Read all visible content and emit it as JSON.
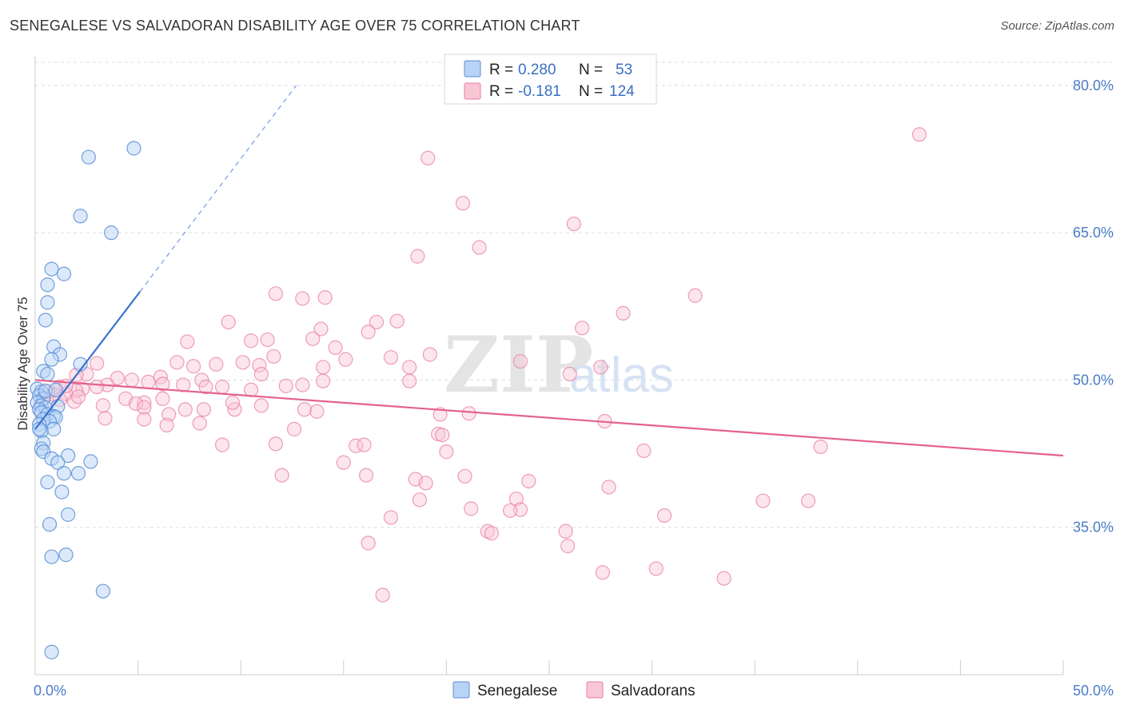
{
  "title": "SENEGALESE VS SALVADORAN DISABILITY AGE OVER 75 CORRELATION CHART",
  "source": "Source: ZipAtlas.com",
  "watermark": {
    "zip": "ZIP",
    "atlas": "atlas"
  },
  "colors": {
    "senegalese_fill": "#b8d3f5",
    "senegalese_stroke": "#5b8fd6",
    "senegalese_line": "#3a72cf",
    "salvadoran_fill": "#f9c6d6",
    "salvadoran_stroke": "#e87fa2",
    "salvadoran_line": "#e4628e",
    "grid": "#dddddd",
    "tick_text": "#4a7cc7"
  },
  "legend": {
    "row1": {
      "r_label": "R = ",
      "r_value": "0.280",
      "n_label": "N = ",
      "n_value": "53"
    },
    "row2": {
      "r_label": "R = ",
      "r_value": "-0.181",
      "n_label": "N = ",
      "n_value": "124"
    }
  },
  "bottom_legend": {
    "senegalese": "Senegalese",
    "salvadorans": "Salvadorans"
  },
  "chart_data": {
    "type": "scatter",
    "title": "SENEGALESE VS SALVADORAN DISABILITY AGE OVER 75 CORRELATION CHART",
    "xlabel": "",
    "ylabel": "Disability Age Over 75",
    "xlim": [
      0,
      50
    ],
    "ylim": [
      20,
      83
    ],
    "x_tick_labels": [
      "0.0%",
      "50.0%"
    ],
    "y_ticks": [
      35,
      50,
      65,
      80
    ],
    "y_tick_labels": [
      "35.0%",
      "50.0%",
      "65.0%",
      "80.0%"
    ],
    "grid": true,
    "legend_position": "top-center",
    "series": [
      {
        "name": "Senegalese",
        "R": 0.28,
        "N": 53,
        "trend": {
          "x": [
            0.0,
            5.1
          ],
          "y": [
            45.0,
            59.0
          ],
          "dashed_to": [
            12.7,
            80.0
          ]
        },
        "points": [
          [
            4.8,
            73.6
          ],
          [
            2.6,
            72.7
          ],
          [
            2.2,
            66.7
          ],
          [
            3.7,
            65.0
          ],
          [
            0.8,
            61.3
          ],
          [
            1.4,
            60.8
          ],
          [
            0.6,
            59.7
          ],
          [
            0.6,
            57.9
          ],
          [
            0.5,
            56.1
          ],
          [
            0.9,
            53.4
          ],
          [
            1.2,
            52.6
          ],
          [
            0.8,
            52.1
          ],
          [
            2.2,
            51.6
          ],
          [
            0.4,
            50.9
          ],
          [
            0.6,
            50.6
          ],
          [
            0.1,
            49.1
          ],
          [
            0.3,
            48.8
          ],
          [
            0.2,
            48.4
          ],
          [
            0.4,
            48.1
          ],
          [
            0.1,
            47.7
          ],
          [
            0.3,
            47.4
          ],
          [
            0.5,
            47.2
          ],
          [
            1.1,
            47.3
          ],
          [
            0.2,
            47.0
          ],
          [
            0.3,
            46.7
          ],
          [
            0.6,
            46.5
          ],
          [
            0.9,
            46.3
          ],
          [
            1.0,
            46.2
          ],
          [
            0.4,
            46.0
          ],
          [
            0.7,
            45.8
          ],
          [
            0.2,
            45.5
          ],
          [
            0.9,
            45.0
          ],
          [
            0.3,
            44.8
          ],
          [
            0.4,
            43.6
          ],
          [
            0.3,
            43.0
          ],
          [
            0.4,
            42.7
          ],
          [
            1.6,
            42.3
          ],
          [
            0.8,
            42.0
          ],
          [
            2.7,
            41.7
          ],
          [
            1.1,
            41.6
          ],
          [
            1.4,
            40.5
          ],
          [
            2.1,
            40.5
          ],
          [
            0.6,
            39.6
          ],
          [
            1.3,
            38.6
          ],
          [
            1.6,
            36.3
          ],
          [
            0.7,
            35.3
          ],
          [
            1.5,
            32.2
          ],
          [
            0.8,
            32.0
          ],
          [
            3.3,
            28.5
          ],
          [
            0.8,
            22.3
          ],
          [
            0.2,
            45.0
          ],
          [
            0.5,
            48.9
          ],
          [
            1.0,
            49.0
          ]
        ]
      },
      {
        "name": "Salvadorans",
        "R": -0.181,
        "N": 124,
        "trend": {
          "x": [
            0.0,
            50.0
          ],
          "y": [
            50.0,
            42.3
          ]
        },
        "points": [
          [
            43.0,
            75.0
          ],
          [
            19.1,
            72.6
          ],
          [
            20.8,
            68.0
          ],
          [
            26.2,
            65.9
          ],
          [
            21.6,
            63.5
          ],
          [
            18.6,
            62.6
          ],
          [
            11.7,
            58.8
          ],
          [
            14.1,
            58.4
          ],
          [
            32.1,
            58.6
          ],
          [
            13.0,
            58.3
          ],
          [
            28.6,
            56.8
          ],
          [
            9.4,
            55.9
          ],
          [
            17.6,
            56.0
          ],
          [
            16.6,
            55.9
          ],
          [
            26.6,
            55.3
          ],
          [
            13.9,
            55.2
          ],
          [
            16.2,
            54.9
          ],
          [
            13.5,
            54.2
          ],
          [
            11.3,
            54.1
          ],
          [
            10.5,
            54.0
          ],
          [
            7.4,
            53.9
          ],
          [
            14.6,
            53.3
          ],
          [
            19.2,
            52.6
          ],
          [
            11.6,
            52.4
          ],
          [
            17.3,
            52.3
          ],
          [
            15.1,
            52.1
          ],
          [
            6.9,
            51.8
          ],
          [
            3.0,
            51.7
          ],
          [
            10.1,
            51.8
          ],
          [
            8.8,
            51.6
          ],
          [
            7.7,
            51.4
          ],
          [
            14.0,
            51.3
          ],
          [
            18.2,
            51.3
          ],
          [
            27.5,
            51.3
          ],
          [
            23.6,
            51.9
          ],
          [
            10.9,
            51.5
          ],
          [
            2.5,
            50.6
          ],
          [
            11.0,
            50.6
          ],
          [
            4.0,
            50.2
          ],
          [
            4.7,
            50.0
          ],
          [
            8.1,
            50.0
          ],
          [
            6.1,
            50.3
          ],
          [
            14.0,
            49.9
          ],
          [
            18.2,
            49.9
          ],
          [
            26.0,
            50.6
          ],
          [
            3.5,
            49.5
          ],
          [
            5.5,
            49.8
          ],
          [
            6.2,
            49.6
          ],
          [
            7.2,
            49.5
          ],
          [
            8.3,
            49.3
          ],
          [
            12.2,
            49.4
          ],
          [
            9.1,
            49.3
          ],
          [
            10.5,
            49.0
          ],
          [
            1.2,
            49.3
          ],
          [
            2.3,
            49.1
          ],
          [
            3.0,
            49.3
          ],
          [
            2.0,
            48.9
          ],
          [
            1.5,
            48.6
          ],
          [
            0.9,
            48.5
          ],
          [
            0.4,
            48.2
          ],
          [
            1.2,
            48.0
          ],
          [
            1.9,
            47.8
          ],
          [
            4.4,
            48.1
          ],
          [
            6.2,
            48.1
          ],
          [
            5.3,
            47.7
          ],
          [
            4.9,
            47.6
          ],
          [
            3.3,
            47.4
          ],
          [
            5.3,
            47.2
          ],
          [
            8.2,
            47.0
          ],
          [
            9.7,
            47.0
          ],
          [
            13.1,
            47.0
          ],
          [
            13.7,
            46.8
          ],
          [
            21.1,
            46.6
          ],
          [
            19.7,
            46.5
          ],
          [
            6.5,
            46.5
          ],
          [
            5.3,
            46.0
          ],
          [
            8.0,
            45.6
          ],
          [
            6.4,
            45.4
          ],
          [
            27.7,
            45.8
          ],
          [
            12.6,
            45.0
          ],
          [
            15.6,
            43.3
          ],
          [
            16.0,
            43.4
          ],
          [
            19.6,
            44.5
          ],
          [
            19.8,
            44.4
          ],
          [
            20.0,
            42.7
          ],
          [
            11.7,
            43.5
          ],
          [
            9.1,
            43.4
          ],
          [
            15.0,
            41.6
          ],
          [
            29.6,
            42.8
          ],
          [
            38.2,
            43.2
          ],
          [
            12.0,
            40.3
          ],
          [
            16.1,
            40.3
          ],
          [
            18.5,
            39.9
          ],
          [
            20.9,
            40.2
          ],
          [
            24.0,
            39.7
          ],
          [
            19.0,
            39.5
          ],
          [
            27.9,
            39.1
          ],
          [
            23.4,
            37.9
          ],
          [
            35.4,
            37.7
          ],
          [
            37.6,
            37.7
          ],
          [
            23.6,
            36.8
          ],
          [
            18.7,
            37.8
          ],
          [
            21.2,
            36.9
          ],
          [
            23.1,
            36.7
          ],
          [
            17.3,
            36.0
          ],
          [
            30.6,
            36.2
          ],
          [
            22.0,
            34.6
          ],
          [
            25.8,
            34.6
          ],
          [
            22.2,
            34.4
          ],
          [
            16.2,
            33.4
          ],
          [
            25.9,
            33.1
          ],
          [
            27.6,
            30.4
          ],
          [
            30.2,
            30.8
          ],
          [
            33.5,
            29.8
          ],
          [
            16.9,
            28.1
          ],
          [
            11.0,
            47.4
          ],
          [
            9.6,
            47.7
          ],
          [
            3.4,
            46.1
          ],
          [
            7.3,
            47.0
          ],
          [
            2.1,
            48.3
          ],
          [
            0.6,
            48.8
          ],
          [
            1.5,
            49.4
          ],
          [
            2.0,
            50.5
          ],
          [
            13.0,
            49.5
          ]
        ]
      }
    ]
  }
}
